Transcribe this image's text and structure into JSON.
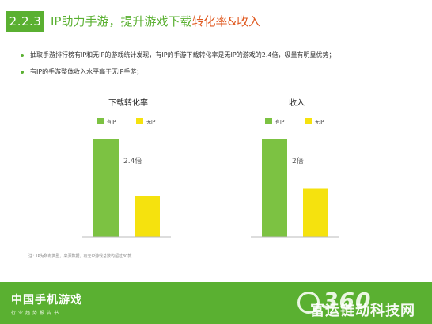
{
  "header": {
    "section_number": "2.2.3",
    "title_main": "IP助力手游，提升游戏下载",
    "title_accent": "转化率&收入"
  },
  "bullets": [
    "抽取手游排行榜有IP和无IP的游戏统计发现，有IP的手游下载转化率是无IP的游戏的2.4倍，吸量有明显优势；",
    "有IP的手游整体收入水平高于无IP手游；"
  ],
  "colors": {
    "brand_green": "#5ab031",
    "ip_bar": "#7cc242",
    "no_ip_bar": "#f5e20e",
    "title_accent": "#e05a21"
  },
  "chart_data": [
    {
      "type": "bar",
      "title": "下载转化率",
      "categories": [
        "有IP",
        "无IP"
      ],
      "values": [
        2.4,
        1.0
      ],
      "ylim": [
        0,
        2.4
      ],
      "annotation": "2.4倍",
      "legend": [
        "有IP",
        "无IP"
      ],
      "legend_position": "top",
      "grid": false
    },
    {
      "type": "bar",
      "title": "收入",
      "categories": [
        "有IP",
        "无IP"
      ],
      "values": [
        2.0,
        1.0
      ],
      "ylim": [
        0,
        2.0
      ],
      "annotation": "2倍",
      "legend": [
        "有IP",
        "无IP"
      ],
      "legend_position": "top",
      "grid": false
    }
  ],
  "note": "注：IP为所有类型，来源数据，有无IP游戏总数均超过30款",
  "footer": {
    "name": "中国手机游戏",
    "subtitle": "行业趋势报告书",
    "logo": "360"
  },
  "watermark": "富运链动科技网"
}
